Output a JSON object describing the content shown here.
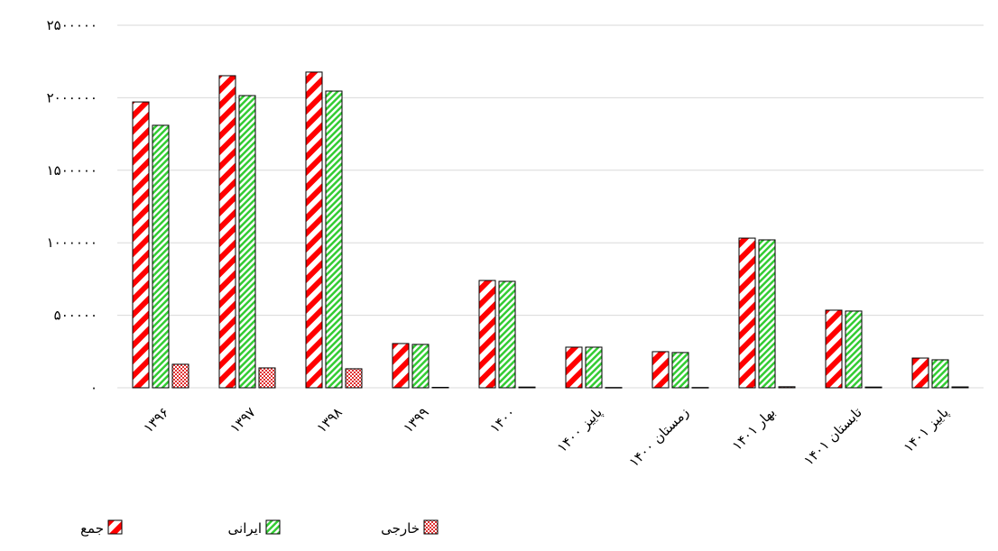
{
  "chart_data": {
    "type": "bar",
    "categories": [
      "۱۳۹۶",
      "۱۳۹۷",
      "۱۳۹۸",
      "۱۳۹۹",
      "۱۴۰۰",
      "پاییز ۱۴۰۰",
      "زمستان ۱۴۰۰",
      "بهار ۱۴۰۱",
      "تابستان ۱۴۰۱",
      "پاییز ۱۴۰۱"
    ],
    "series": [
      {
        "name": "جمع",
        "color": "#ff0000",
        "pattern": "diagonal",
        "values": [
          1971000,
          2152000,
          2177000,
          305000,
          740000,
          280000,
          249000,
          1032000,
          535000,
          205000
        ]
      },
      {
        "name": "ایرانی",
        "color": "#33cc33",
        "pattern": "fine-diagonal",
        "values": [
          1810000,
          2015000,
          2046000,
          299000,
          734000,
          280000,
          243000,
          1020000,
          529000,
          193000
        ]
      },
      {
        "name": "خارجی",
        "color": "#e03030",
        "pattern": "checker",
        "values": [
          162000,
          137000,
          131000,
          3000,
          5000,
          2000,
          2000,
          7000,
          5000,
          6000
        ]
      }
    ],
    "ylim": [
      0,
      2500000
    ],
    "yticks": [
      {
        "value": 0,
        "label": "۰"
      },
      {
        "value": 500000,
        "label": "۵۰۰۰۰۰"
      },
      {
        "value": 1000000,
        "label": "۱۰۰۰۰۰۰"
      },
      {
        "value": 1500000,
        "label": "۱۵۰۰۰۰۰"
      },
      {
        "value": 2000000,
        "label": "۲۰۰۰۰۰۰"
      },
      {
        "value": 2500000,
        "label": "۲۵۰۰۰۰۰"
      }
    ],
    "grid": true,
    "legend": "bottom-left"
  }
}
